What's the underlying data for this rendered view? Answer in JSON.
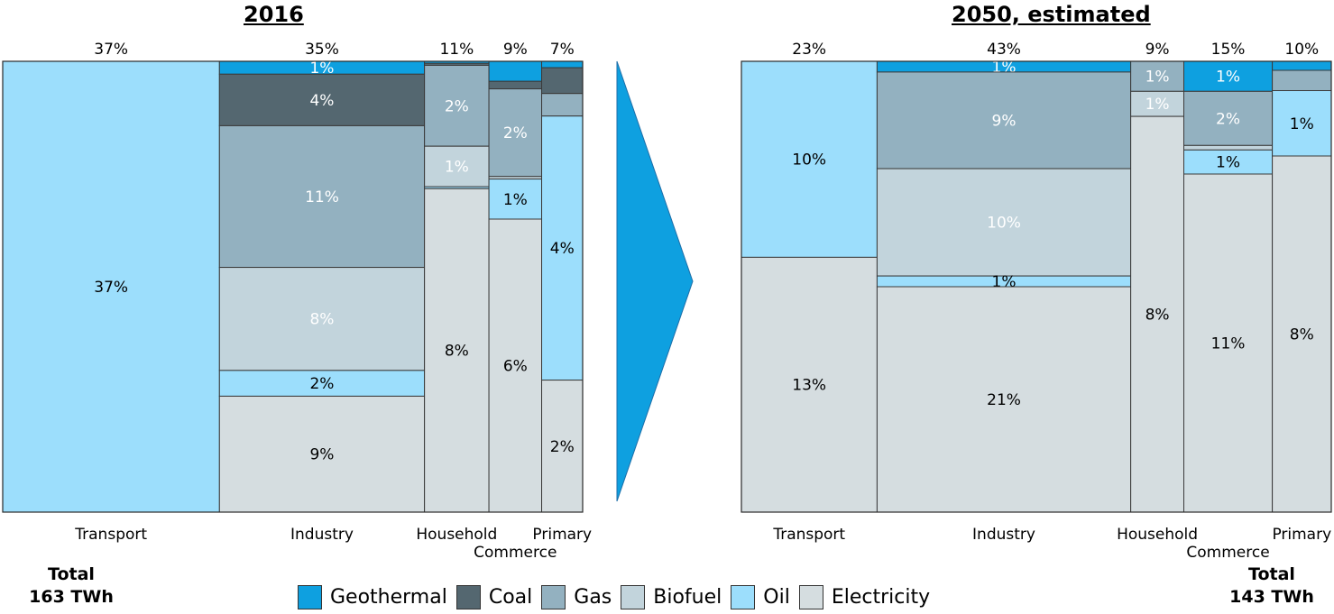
{
  "chart_data": [
    {
      "type": "mekko",
      "title": "2016",
      "total_label": "Total",
      "total_value": "163 TWh",
      "columns": [
        {
          "label": "Transport",
          "share": 37,
          "share_label": "37%",
          "segments": [
            {
              "series": "Oil",
              "value": 37,
              "label": "37%"
            }
          ]
        },
        {
          "label": "Industry",
          "share": 35,
          "share_label": "35%",
          "segments": [
            {
              "series": "Geothermal",
              "value": 1,
              "label": "1%"
            },
            {
              "series": "Coal",
              "value": 4,
              "label": "4%"
            },
            {
              "series": "Gas",
              "value": 11,
              "label": "11%"
            },
            {
              "series": "Biofuel",
              "value": 8,
              "label": "8%"
            },
            {
              "series": "Oil",
              "value": 2,
              "label": "2%"
            },
            {
              "series": "Electricity",
              "value": 9,
              "label": "9%"
            }
          ]
        },
        {
          "label": "Household",
          "share": 11,
          "share_label": "11%",
          "segments": [
            {
              "series": "Geothermal",
              "value": 0.05,
              "label": ""
            },
            {
              "series": "Coal",
              "value": 0.05,
              "label": ""
            },
            {
              "series": "Gas",
              "value": 2,
              "label": "2%"
            },
            {
              "series": "Biofuel",
              "value": 1,
              "label": "1%"
            },
            {
              "series": "Oil",
              "value": 0.05,
              "label": ""
            },
            {
              "series": "Electricity",
              "value": 8,
              "label": "8%"
            }
          ]
        },
        {
          "label": "Commerce",
          "share": 9,
          "share_label": "9%",
          "segments": [
            {
              "series": "Geothermal",
              "value": 0.4,
              "label": ""
            },
            {
              "series": "Coal",
              "value": 0.15,
              "label": ""
            },
            {
              "series": "Gas",
              "value": 1.75,
              "label": "2%"
            },
            {
              "series": "Biofuel",
              "value": 0.05,
              "label": ""
            },
            {
              "series": "Oil",
              "value": 0.8,
              "label": "1%"
            },
            {
              "series": "Electricity",
              "value": 5.85,
              "label": "6%"
            }
          ]
        },
        {
          "label": "Primary",
          "share": 7,
          "share_label": "7%",
          "segments": [
            {
              "series": "Geothermal",
              "value": 0.1,
              "label": ""
            },
            {
              "series": "Coal",
              "value": 0.4,
              "label": ""
            },
            {
              "series": "Gas",
              "value": 0.35,
              "label": ""
            },
            {
              "series": "Oil",
              "value": 4.1,
              "label": "4%"
            },
            {
              "series": "Electricity",
              "value": 2.05,
              "label": "2%"
            }
          ]
        }
      ]
    },
    {
      "type": "mekko",
      "title": "2050, estimated",
      "total_label": "Total",
      "total_value": "143 TWh",
      "columns": [
        {
          "label": "Transport",
          "share": 23,
          "share_label": "23%",
          "segments": [
            {
              "series": "Oil",
              "value": 10,
              "label": "10%"
            },
            {
              "series": "Electricity",
              "value": 13,
              "label": "13%"
            }
          ]
        },
        {
          "label": "Industry",
          "share": 43,
          "share_label": "43%",
          "segments": [
            {
              "series": "Geothermal",
              "value": 1,
              "label": "1%"
            },
            {
              "series": "Gas",
              "value": 9,
              "label": "9%"
            },
            {
              "series": "Biofuel",
              "value": 10,
              "label": "10%"
            },
            {
              "series": "Oil",
              "value": 1,
              "label": "1%"
            },
            {
              "series": "Electricity",
              "value": 21,
              "label": "21%"
            }
          ]
        },
        {
          "label": "Household",
          "share": 9,
          "share_label": "9%",
          "segments": [
            {
              "series": "Gas",
              "value": 0.6,
              "label": "1%"
            },
            {
              "series": "Biofuel",
              "value": 0.5,
              "label": "1%"
            },
            {
              "series": "Electricity",
              "value": 7.9,
              "label": "8%"
            }
          ]
        },
        {
          "label": "Commerce",
          "share": 15,
          "share_label": "15%",
          "segments": [
            {
              "series": "Geothermal",
              "value": 1,
              "label": "1%"
            },
            {
              "series": "Gas",
              "value": 1.8,
              "label": "2%"
            },
            {
              "series": "Biofuel",
              "value": 0.15,
              "label": ""
            },
            {
              "series": "Oil",
              "value": 0.8,
              "label": "1%"
            },
            {
              "series": "Electricity",
              "value": 11.25,
              "label": "11%"
            }
          ]
        },
        {
          "label": "Primary",
          "share": 10,
          "share_label": "10%",
          "segments": [
            {
              "series": "Geothermal",
              "value": 0.2,
              "label": ""
            },
            {
              "series": "Gas",
              "value": 0.45,
              "label": ""
            },
            {
              "series": "Oil",
              "value": 1.45,
              "label": "1%"
            },
            {
              "series": "Electricity",
              "value": 7.9,
              "label": "8%"
            }
          ]
        }
      ]
    }
  ],
  "legend": [
    {
      "name": "Geothermal",
      "color": "#0ea0e0"
    },
    {
      "name": "Coal",
      "color": "#546770"
    },
    {
      "name": "Gas",
      "color": "#93b1c0"
    },
    {
      "name": "Biofuel",
      "color": "#c2d4dc"
    },
    {
      "name": "Oil",
      "color": "#9cdefc"
    },
    {
      "name": "Electricity",
      "color": "#d5dde0"
    }
  ],
  "label_colors": {
    "Geothermal": "#ffffff",
    "Coal": "#ffffff",
    "Gas": "#ffffff",
    "Biofuel": "#ffffff",
    "Oil": "#000000",
    "Electricity": "#000000"
  },
  "arrow_color": "#0ea0e0"
}
